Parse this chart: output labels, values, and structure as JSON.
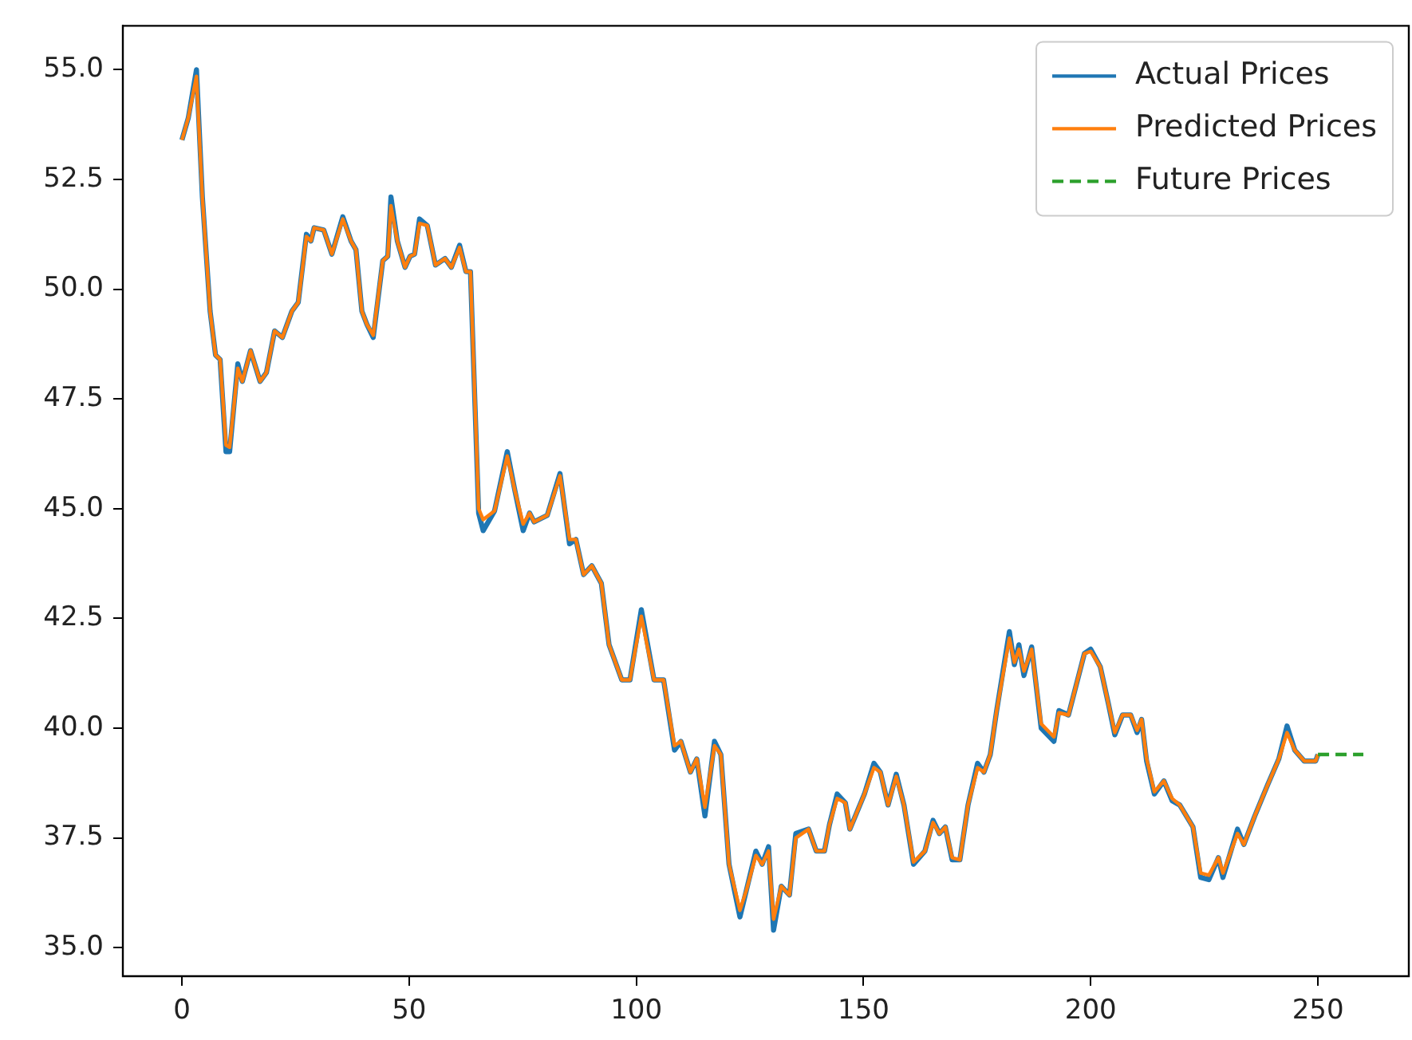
{
  "chart_data": {
    "type": "line",
    "x": [
      0,
      1.4,
      3.2,
      4.5,
      6.2,
      7.4,
      8.4,
      9.7,
      10.5,
      12.3,
      13.3,
      15.1,
      17.2,
      18.6,
      20.4,
      22.1,
      24.2,
      25.6,
      27.4,
      28.4,
      29.1,
      31.2,
      33,
      35.4,
      37.2,
      38.3,
      39.6,
      40.7,
      42.1,
      44.2,
      45.3,
      46,
      47.4,
      49.1,
      50.2,
      51.2,
      52.3,
      54,
      55.8,
      57.9,
      59.3,
      61.1,
      62.5,
      63.5,
      65.3,
      66.3,
      68.8,
      71.6,
      73.3,
      75.1,
      76.5,
      77.5,
      80.4,
      83.2,
      85.3,
      86.7,
      88.4,
      90.2,
      92.3,
      94,
      96.8,
      98.6,
      101.1,
      103.9,
      106,
      108.4,
      109.8,
      111.9,
      113.3,
      115.1,
      117.2,
      118.6,
      120.4,
      122.8,
      124.2,
      126.3,
      127.7,
      129.1,
      130.2,
      131.9,
      133.7,
      135.1,
      137.9,
      139.6,
      141.4,
      142.5,
      144.2,
      146,
      147,
      150.2,
      152.3,
      153.7,
      155.4,
      157.2,
      158.9,
      161,
      163.5,
      165.3,
      166.7,
      168,
      169.5,
      171.2,
      173,
      175.1,
      176.5,
      177.9,
      179.3,
      182.1,
      183.2,
      184.2,
      185.3,
      187,
      189.1,
      191.9,
      193,
      195.1,
      198.6,
      200,
      202.1,
      203.9,
      205.3,
      207,
      208.8,
      210.2,
      211.2,
      212.3,
      214,
      216.1,
      217.9,
      219.6,
      222.5,
      224.2,
      226,
      228.1,
      229.1,
      232.3,
      233.7,
      236.1,
      238.9,
      241.4,
      243.2,
      244.9,
      247,
      249.5,
      250
    ],
    "series": [
      {
        "name": "Actual Prices",
        "color": "#1f77b4",
        "values": [
          53.4,
          53.9,
          55.0,
          52.1,
          49.5,
          48.5,
          48.4,
          46.3,
          46.3,
          48.3,
          47.9,
          48.6,
          47.9,
          48.1,
          49.05,
          48.9,
          49.5,
          49.7,
          51.25,
          51.1,
          51.4,
          51.35,
          50.8,
          51.65,
          51.1,
          50.9,
          49.5,
          49.2,
          48.9,
          50.65,
          50.75,
          52.1,
          51.1,
          50.5,
          50.75,
          50.8,
          51.6,
          51.45,
          50.55,
          50.7,
          50.5,
          51.0,
          50.4,
          50.4,
          44.9,
          44.5,
          44.95,
          46.3,
          45.4,
          44.5,
          44.9,
          44.7,
          44.85,
          45.8,
          44.2,
          44.3,
          43.5,
          43.7,
          43.3,
          41.9,
          41.1,
          41.1,
          42.7,
          41.1,
          41.1,
          39.5,
          39.7,
          39.0,
          39.3,
          38.0,
          39.7,
          39.4,
          36.9,
          35.7,
          36.3,
          37.2,
          36.9,
          37.3,
          35.4,
          36.4,
          36.2,
          37.6,
          37.7,
          37.2,
          37.2,
          37.8,
          38.5,
          38.3,
          37.7,
          38.5,
          39.2,
          39.0,
          38.25,
          38.95,
          38.25,
          36.9,
          37.2,
          37.9,
          37.6,
          37.75,
          37.0,
          37.0,
          38.25,
          39.2,
          39.0,
          39.4,
          40.4,
          42.2,
          41.45,
          41.9,
          41.2,
          41.85,
          40.0,
          39.7,
          40.4,
          40.3,
          41.7,
          41.8,
          41.4,
          40.55,
          39.85,
          40.3,
          40.3,
          39.9,
          40.2,
          39.25,
          38.5,
          38.8,
          38.35,
          38.25,
          37.75,
          36.6,
          36.55,
          37.05,
          36.6,
          37.7,
          37.35,
          38.0,
          38.7,
          39.3,
          40.05,
          39.5,
          39.25,
          39.25,
          39.4
        ]
      },
      {
        "name": "Predicted Prices",
        "color": "#ff7f0e",
        "values": [
          53.4,
          53.9,
          54.85,
          52.1,
          49.5,
          48.5,
          48.4,
          46.45,
          46.4,
          48.2,
          47.9,
          48.6,
          47.9,
          48.1,
          49.05,
          48.9,
          49.5,
          49.7,
          51.2,
          51.1,
          51.4,
          51.35,
          50.8,
          51.6,
          51.1,
          50.9,
          49.5,
          49.2,
          48.95,
          50.65,
          50.75,
          51.9,
          51.1,
          50.5,
          50.75,
          50.8,
          51.5,
          51.45,
          50.55,
          50.7,
          50.5,
          50.95,
          50.4,
          50.4,
          45.0,
          44.75,
          44.95,
          46.2,
          45.4,
          44.65,
          44.9,
          44.7,
          44.85,
          45.75,
          44.3,
          44.3,
          43.5,
          43.7,
          43.3,
          41.9,
          41.1,
          41.1,
          42.55,
          41.1,
          41.1,
          39.6,
          39.7,
          39.0,
          39.3,
          38.2,
          39.6,
          39.4,
          36.9,
          35.85,
          36.3,
          37.1,
          36.9,
          37.2,
          35.65,
          36.4,
          36.2,
          37.5,
          37.7,
          37.2,
          37.2,
          37.8,
          38.4,
          38.3,
          37.7,
          38.5,
          39.1,
          39.0,
          38.25,
          38.9,
          38.25,
          36.95,
          37.2,
          37.85,
          37.6,
          37.75,
          37.05,
          37.0,
          38.25,
          39.1,
          39.0,
          39.4,
          40.4,
          42.05,
          41.5,
          41.8,
          41.3,
          41.8,
          40.1,
          39.8,
          40.35,
          40.3,
          41.7,
          41.75,
          41.4,
          40.55,
          39.9,
          40.3,
          40.3,
          39.95,
          40.2,
          39.3,
          38.55,
          38.8,
          38.4,
          38.25,
          37.75,
          36.7,
          36.65,
          37.05,
          36.7,
          37.6,
          37.35,
          38.0,
          38.7,
          39.3,
          39.9,
          39.5,
          39.25,
          39.25,
          39.4
        ]
      },
      {
        "name": "Future Prices",
        "color": "#2ca02c",
        "line_style": "dashed",
        "x": [
          250,
          260
        ],
        "values": [
          39.4,
          39.4
        ]
      }
    ],
    "xlim": [
      -13,
      270
    ],
    "xticks": [
      0,
      50,
      100,
      150,
      200,
      250
    ],
    "ylim": [
      34.35,
      56.0
    ],
    "yticks": [
      {
        "value": 35,
        "label": "35.0"
      },
      {
        "value": 37.5,
        "label": "37.5"
      },
      {
        "value": 40,
        "label": "40.0"
      },
      {
        "value": 42.5,
        "label": "42.5"
      },
      {
        "value": 45,
        "label": "45.0"
      },
      {
        "value": 47.5,
        "label": "47.5"
      },
      {
        "value": 50,
        "label": "50.0"
      },
      {
        "value": 52.5,
        "label": "52.5"
      },
      {
        "value": 55,
        "label": "55.0"
      }
    ],
    "legend": "top right"
  }
}
